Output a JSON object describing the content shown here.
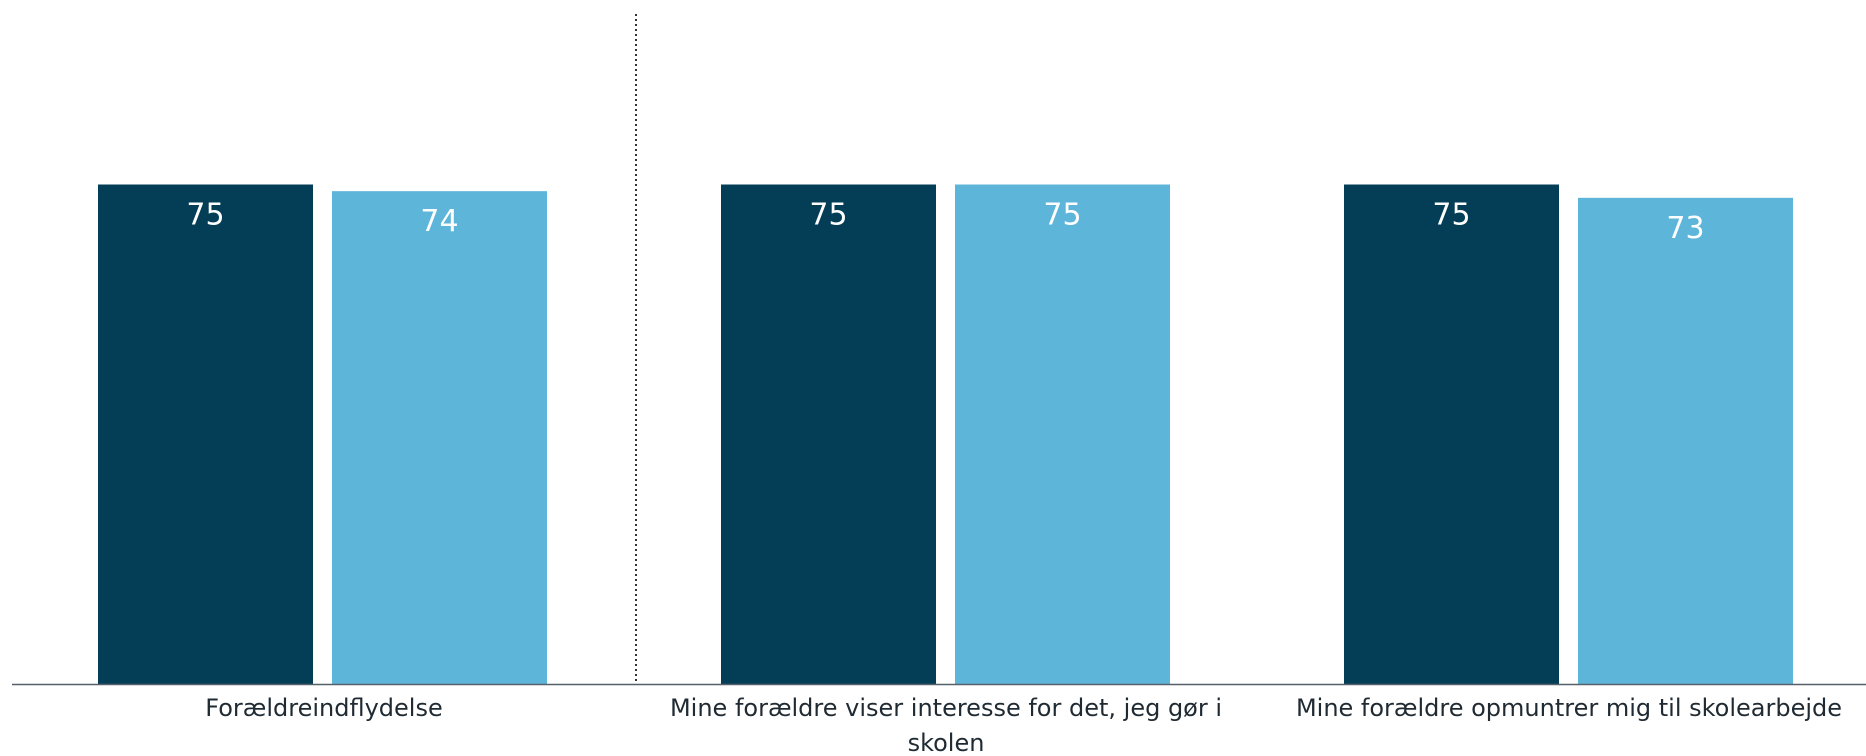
{
  "chart_data": {
    "type": "bar",
    "categories": [
      [
        "Forældreindflydelse"
      ],
      [
        "Mine forældre viser interesse for det, jeg gør i",
        "skolen"
      ],
      [
        "Mine forældre opmuntrer mig til skolearbejde"
      ]
    ],
    "series": [
      {
        "values": [
          75,
          75,
          75
        ],
        "color": "#033e56"
      },
      {
        "values": [
          74,
          75,
          73
        ],
        "color": "#5eb5da"
      }
    ],
    "value_labels": [
      [
        "75",
        "75",
        "75"
      ],
      [
        "74",
        "75",
        "73"
      ]
    ],
    "ylim": [
      0,
      100
    ],
    "grid": false,
    "legend": "none",
    "divider_after_category": 0,
    "colors": {
      "axis": "#56606a",
      "divider": "#333333",
      "label_text": "#1f2a33"
    }
  }
}
